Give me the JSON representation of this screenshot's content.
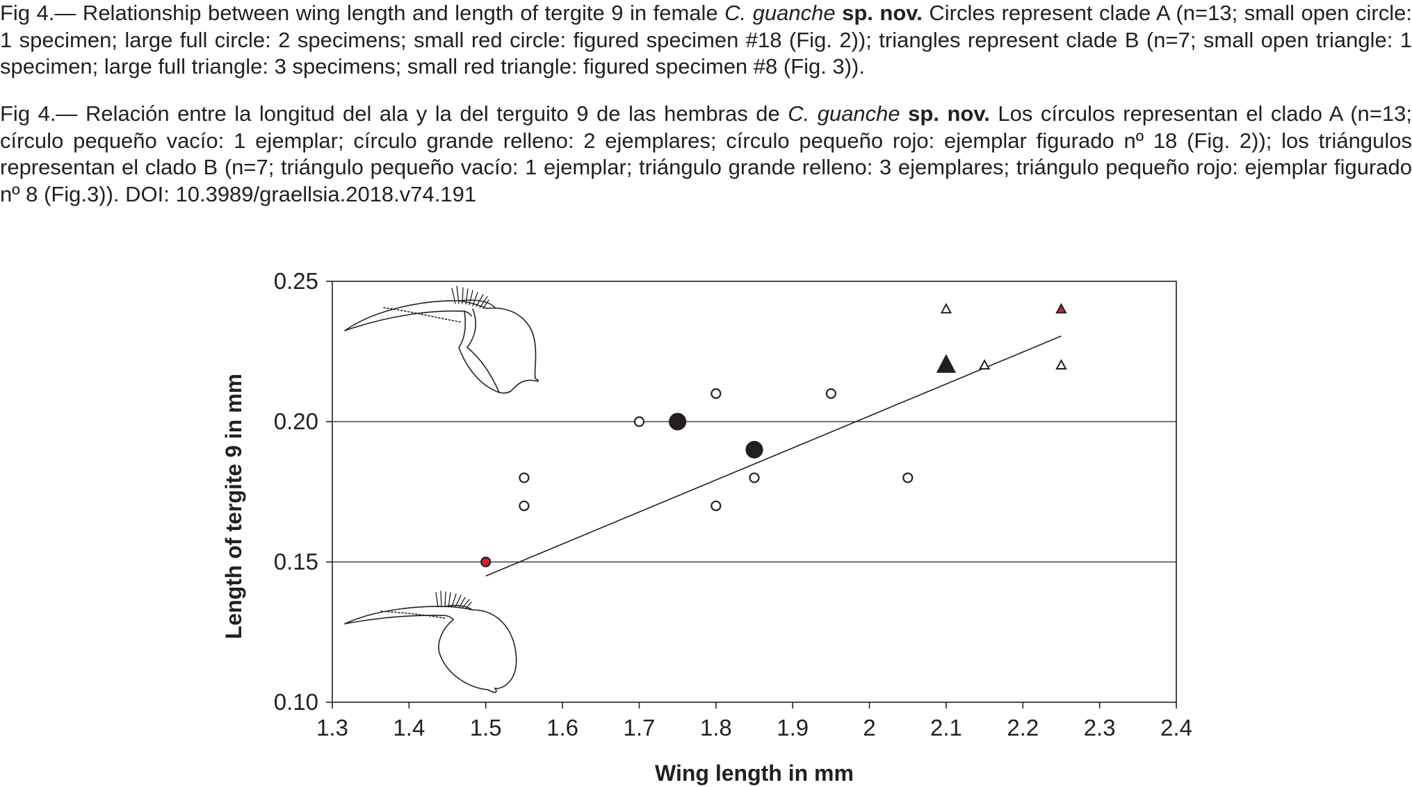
{
  "caption_en": {
    "prefix": "Fig 4.— Relationship between wing length and length of tergite 9 in female ",
    "species": "C. guanche",
    "status": " sp. nov.",
    "body": " Circles represent clade A (n=13; small open circle: 1 specimen; large full circle: 2 specimens; small red circle: figured specimen #18 (Fig. 2)); triangles represent clade B (n=7; small open triangle: 1 specimen; large full triangle: 3 specimens; small red triangle: figured specimen #8 (Fig. 3))."
  },
  "caption_es": {
    "prefix": "Fig 4.— Relación entre la longitud del ala y la del terguito 9 de las hembras de ",
    "species": "C. guanche",
    "status": " sp. nov.",
    "body": " Los círculos representan el clado A (n=13; círculo pequeño vacío: 1 ejemplar; círculo grande relleno: 2 ejemplares; círculo pequeño rojo: ejemplar figurado nº 18 (Fig. 2)); los triángulos representan el clado B (n=7; triángulo pequeño vacío: 1 ejemplar; triángulo grande relleno: 3 ejemplares; triángulo pequeño rojo: ejemplar figurado nº 8 (Fig.3)). DOI: 10.3989/graellsia.2018.v74.191"
  },
  "colors": {
    "ink": "#231f20",
    "highlight": "#c1272d"
  },
  "chart_data": {
    "type": "scatter",
    "xlabel": "Wing length in mm",
    "ylabel": "Length of tergite 9 in mm",
    "xlim": [
      1.3,
      2.4
    ],
    "ylim": [
      0.1,
      0.25
    ],
    "x_ticks": [
      "1.3",
      "1.4",
      "1.5",
      "1.6",
      "1.7",
      "1.8",
      "1.9",
      "2",
      "2.1",
      "2.2",
      "2.3",
      "2.4"
    ],
    "y_ticks": [
      "0.10",
      "0.15",
      "0.20",
      "0.25"
    ],
    "y_gridlines": [
      0.15,
      0.2
    ],
    "series": [
      {
        "marker": "circle",
        "points": [
          {
            "x": 1.5,
            "y": 0.15,
            "style": "red"
          },
          {
            "x": 1.55,
            "y": 0.17,
            "style": "open"
          },
          {
            "x": 1.55,
            "y": 0.18,
            "style": "open"
          },
          {
            "x": 1.7,
            "y": 0.2,
            "style": "open"
          },
          {
            "x": 1.75,
            "y": 0.2,
            "style": "filled"
          },
          {
            "x": 1.8,
            "y": 0.17,
            "style": "open"
          },
          {
            "x": 1.8,
            "y": 0.21,
            "style": "open"
          },
          {
            "x": 1.85,
            "y": 0.18,
            "style": "open"
          },
          {
            "x": 1.85,
            "y": 0.19,
            "style": "filled"
          },
          {
            "x": 1.95,
            "y": 0.21,
            "style": "open"
          },
          {
            "x": 2.05,
            "y": 0.18,
            "style": "open"
          }
        ]
      },
      {
        "marker": "triangle",
        "points": [
          {
            "x": 2.1,
            "y": 0.22,
            "style": "filled"
          },
          {
            "x": 2.1,
            "y": 0.24,
            "style": "open"
          },
          {
            "x": 2.15,
            "y": 0.22,
            "style": "open"
          },
          {
            "x": 2.25,
            "y": 0.22,
            "style": "open"
          },
          {
            "x": 2.25,
            "y": 0.24,
            "style": "red"
          }
        ]
      }
    ],
    "trendline": {
      "x": [
        1.5,
        2.25
      ],
      "y": [
        0.145,
        0.2305
      ]
    }
  }
}
